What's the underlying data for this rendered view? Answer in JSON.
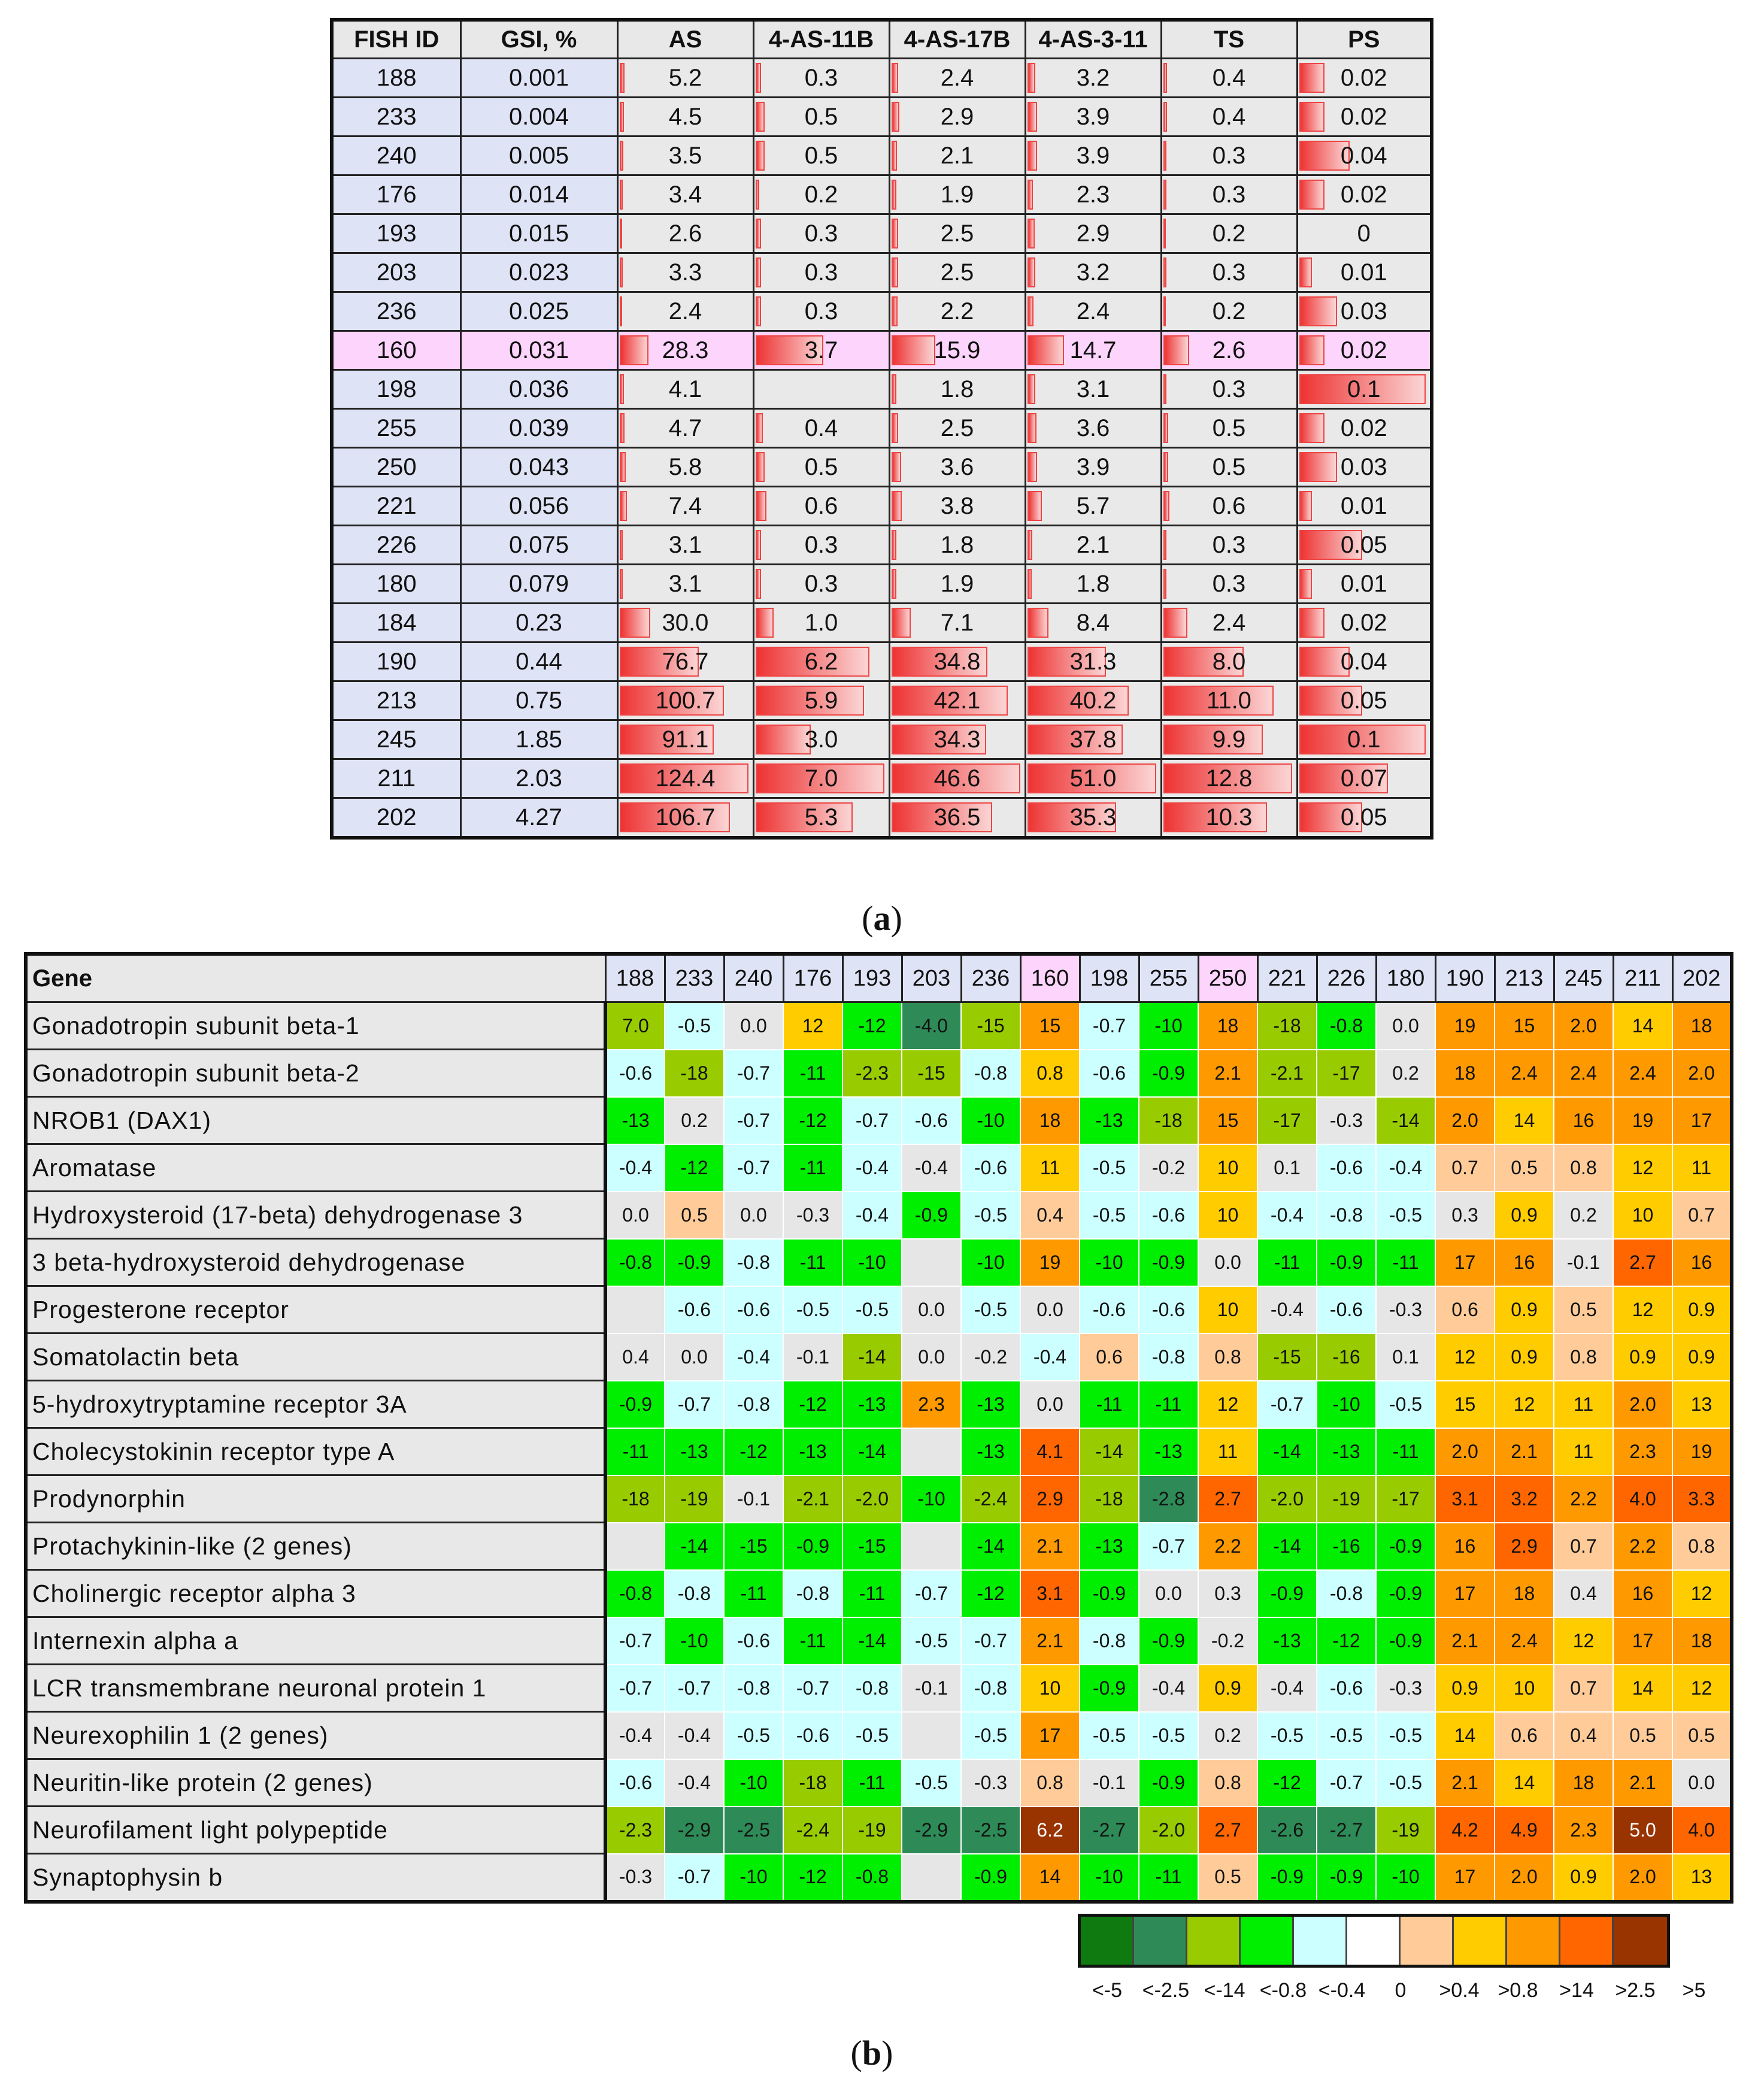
{
  "panel_a": {
    "label_letter": "a",
    "headers": [
      "FISH ID",
      "GSI, %",
      "AS",
      "4-AS-11B",
      "4-AS-17B",
      "4-AS-3-11",
      "TS",
      "PS"
    ],
    "column_max": [
      124.4,
      7.0,
      46.6,
      51.0,
      12.8,
      0.1
    ],
    "rows": [
      {
        "id": "188",
        "gsi": "0.001",
        "vals": [
          "5.2",
          "0.3",
          "2.4",
          "3.2",
          "0.4",
          "0.02"
        ]
      },
      {
        "id": "233",
        "gsi": "0.004",
        "vals": [
          "4.5",
          "0.5",
          "2.9",
          "3.9",
          "0.4",
          "0.02"
        ]
      },
      {
        "id": "240",
        "gsi": "0.005",
        "vals": [
          "3.5",
          "0.5",
          "2.1",
          "3.9",
          "0.3",
          "0.04"
        ]
      },
      {
        "id": "176",
        "gsi": "0.014",
        "vals": [
          "3.4",
          "0.2",
          "1.9",
          "2.3",
          "0.3",
          "0.02"
        ]
      },
      {
        "id": "193",
        "gsi": "0.015",
        "vals": [
          "2.6",
          "0.3",
          "2.5",
          "2.9",
          "0.2",
          "0"
        ]
      },
      {
        "id": "203",
        "gsi": "0.023",
        "vals": [
          "3.3",
          "0.3",
          "2.5",
          "3.2",
          "0.3",
          "0.01"
        ]
      },
      {
        "id": "236",
        "gsi": "0.025",
        "vals": [
          "2.4",
          "0.3",
          "2.2",
          "2.4",
          "0.2",
          "0.03"
        ]
      },
      {
        "id": "160",
        "gsi": "0.031",
        "vals": [
          "28.3",
          "3.7",
          "15.9",
          "14.7",
          "2.6",
          "0.02"
        ],
        "highlight": true
      },
      {
        "id": "198",
        "gsi": "0.036",
        "vals": [
          "4.1",
          "",
          "1.8",
          "3.1",
          "0.3",
          "0.1"
        ]
      },
      {
        "id": "255",
        "gsi": "0.039",
        "vals": [
          "4.7",
          "0.4",
          "2.5",
          "3.6",
          "0.5",
          "0.02"
        ]
      },
      {
        "id": "250",
        "gsi": "0.043",
        "vals": [
          "5.8",
          "0.5",
          "3.6",
          "3.9",
          "0.5",
          "0.03"
        ]
      },
      {
        "id": "221",
        "gsi": "0.056",
        "vals": [
          "7.4",
          "0.6",
          "3.8",
          "5.7",
          "0.6",
          "0.01"
        ]
      },
      {
        "id": "226",
        "gsi": "0.075",
        "vals": [
          "3.1",
          "0.3",
          "1.8",
          "2.1",
          "0.3",
          "0.05"
        ]
      },
      {
        "id": "180",
        "gsi": "0.079",
        "vals": [
          "3.1",
          "0.3",
          "1.9",
          "1.8",
          "0.3",
          "0.01"
        ]
      },
      {
        "id": "184",
        "gsi": "0.23",
        "vals": [
          "30.0",
          "1.0",
          "7.1",
          "8.4",
          "2.4",
          "0.02"
        ]
      },
      {
        "id": "190",
        "gsi": "0.44",
        "vals": [
          "76.7",
          "6.2",
          "34.8",
          "31.3",
          "8.0",
          "0.04"
        ]
      },
      {
        "id": "213",
        "gsi": "0.75",
        "vals": [
          "100.7",
          "5.9",
          "42.1",
          "40.2",
          "11.0",
          "0.05"
        ]
      },
      {
        "id": "245",
        "gsi": "1.85",
        "vals": [
          "91.1",
          "3.0",
          "34.3",
          "37.8",
          "9.9",
          "0.1"
        ]
      },
      {
        "id": "211",
        "gsi": "2.03",
        "vals": [
          "124.4",
          "7.0",
          "46.6",
          "51.0",
          "12.8",
          "0.07"
        ]
      },
      {
        "id": "202",
        "gsi": "4.27",
        "vals": [
          "106.7",
          "5.3",
          "36.5",
          "35.3",
          "10.3",
          "0.05"
        ]
      }
    ]
  },
  "panel_b": {
    "label_letter": "b",
    "gene_header": "Gene",
    "fish_ids": [
      "188",
      "233",
      "240",
      "176",
      "193",
      "203",
      "236",
      "160",
      "198",
      "255",
      "250",
      "221",
      "226",
      "180",
      "190",
      "213",
      "245",
      "211",
      "202"
    ],
    "highlight_ids": [
      "160",
      "250"
    ],
    "colors": {
      "dg": "#0f7a0f",
      "mg": "#2e8b57",
      "yg": "#99cc00",
      "bg": "#00ee00",
      "cy": "#ccffff",
      "wh": "#e6e6e6",
      "pe": "#ffcc99",
      "ye": "#ffcc00",
      "or": "#ff9900",
      "ro": "#ff6600",
      "br": "#993300"
    },
    "rows": [
      {
        "gene": "Gonadotropin subunit beta-1",
        "vals": [
          "7.0",
          "-0.5",
          "0.0",
          "12",
          "-12",
          "-4.0",
          "-15",
          "15",
          "-0.7",
          "-10",
          "18",
          "-18",
          "-0.8",
          "0.0",
          "19",
          "15",
          "2.0",
          "14",
          "18"
        ],
        "cls": [
          "yg",
          "cy",
          "wh",
          "ye",
          "bg",
          "mg",
          "yg",
          "or",
          "cy",
          "bg",
          "or",
          "yg",
          "bg",
          "wh",
          "or",
          "or",
          "or",
          "ye",
          "or"
        ]
      },
      {
        "gene": "Gonadotropin subunit beta-2",
        "vals": [
          "-0.6",
          "-18",
          "-0.7",
          "-11",
          "-2.3",
          "-15",
          "-0.8",
          "0.8",
          "-0.6",
          "-0.9",
          "2.1",
          "-2.1",
          "-17",
          "0.2",
          "18",
          "2.4",
          "2.4",
          "2.4",
          "2.0"
        ],
        "cls": [
          "cy",
          "yg",
          "cy",
          "bg",
          "yg",
          "yg",
          "cy",
          "ye",
          "cy",
          "bg",
          "or",
          "yg",
          "yg",
          "wh",
          "or",
          "or",
          "or",
          "or",
          "or"
        ]
      },
      {
        "gene": "NROB1 (DAX1)",
        "vals": [
          "-13",
          "0.2",
          "-0.7",
          "-12",
          "-0.7",
          "-0.6",
          "-10",
          "18",
          "-13",
          "-18",
          "15",
          "-17",
          "-0.3",
          "-14",
          "2.0",
          "14",
          "16",
          "19",
          "17"
        ],
        "cls": [
          "bg",
          "wh",
          "cy",
          "bg",
          "cy",
          "cy",
          "bg",
          "or",
          "bg",
          "yg",
          "or",
          "yg",
          "wh",
          "yg",
          "or",
          "ye",
          "or",
          "or",
          "or"
        ]
      },
      {
        "gene": "Aromatase",
        "vals": [
          "-0.4",
          "-12",
          "-0.7",
          "-11",
          "-0.4",
          "-0.4",
          "-0.6",
          "11",
          "-0.5",
          "-0.2",
          "10",
          "0.1",
          "-0.6",
          "-0.4",
          "0.7",
          "0.5",
          "0.8",
          "12",
          "11"
        ],
        "cls": [
          "cy",
          "bg",
          "cy",
          "bg",
          "cy",
          "wh",
          "cy",
          "ye",
          "cy",
          "wh",
          "ye",
          "wh",
          "cy",
          "cy",
          "pe",
          "pe",
          "pe",
          "ye",
          "ye"
        ]
      },
      {
        "gene": "Hydroxysteroid (17-beta) dehydrogenase 3",
        "vals": [
          "0.0",
          "0.5",
          "0.0",
          "-0.3",
          "-0.4",
          "-0.9",
          "-0.5",
          "0.4",
          "-0.5",
          "-0.6",
          "10",
          "-0.4",
          "-0.8",
          "-0.5",
          "0.3",
          "0.9",
          "0.2",
          "10",
          "0.7"
        ],
        "cls": [
          "wh",
          "pe",
          "wh",
          "wh",
          "cy",
          "bg",
          "cy",
          "pe",
          "cy",
          "cy",
          "ye",
          "cy",
          "cy",
          "cy",
          "wh",
          "ye",
          "wh",
          "ye",
          "pe"
        ]
      },
      {
        "gene": "3 beta-hydroxysteroid dehydrogenase",
        "vals": [
          "-0.8",
          "-0.9",
          "-0.8",
          "-11",
          "-10",
          "",
          "-10",
          "19",
          "-10",
          "-0.9",
          "0.0",
          "-11",
          "-0.9",
          "-11",
          "17",
          "16",
          "-0.1",
          "2.7",
          "16"
        ],
        "cls": [
          "bg",
          "bg",
          "cy",
          "bg",
          "bg",
          "wh",
          "bg",
          "or",
          "bg",
          "bg",
          "wh",
          "bg",
          "bg",
          "bg",
          "or",
          "or",
          "wh",
          "ro",
          "or"
        ]
      },
      {
        "gene": "Progesterone receptor",
        "vals": [
          "",
          "-0.6",
          "-0.6",
          "-0.5",
          "-0.5",
          "0.0",
          "-0.5",
          "0.0",
          "-0.6",
          "-0.6",
          "10",
          "-0.4",
          "-0.6",
          "-0.3",
          "0.6",
          "0.9",
          "0.5",
          "12",
          "0.9"
        ],
        "cls": [
          "wh",
          "cy",
          "cy",
          "cy",
          "cy",
          "wh",
          "cy",
          "wh",
          "cy",
          "cy",
          "ye",
          "wh",
          "cy",
          "wh",
          "pe",
          "ye",
          "pe",
          "ye",
          "ye"
        ]
      },
      {
        "gene": "Somatolactin beta",
        "vals": [
          "0.4",
          "0.0",
          "-0.4",
          "-0.1",
          "-14",
          "0.0",
          "-0.2",
          "-0.4",
          "0.6",
          "-0.8",
          "0.8",
          "-15",
          "-16",
          "0.1",
          "12",
          "0.9",
          "0.8",
          "0.9",
          "0.9"
        ],
        "cls": [
          "wh",
          "wh",
          "cy",
          "wh",
          "yg",
          "wh",
          "wh",
          "cy",
          "pe",
          "cy",
          "pe",
          "yg",
          "yg",
          "wh",
          "ye",
          "ye",
          "pe",
          "ye",
          "ye"
        ]
      },
      {
        "gene": "5-hydroxytryptamine receptor 3A",
        "vals": [
          "-0.9",
          "-0.7",
          "-0.8",
          "-12",
          "-13",
          "2.3",
          "-13",
          "0.0",
          "-11",
          "-11",
          "12",
          "-0.7",
          "-10",
          "-0.5",
          "15",
          "12",
          "11",
          "2.0",
          "13"
        ],
        "cls": [
          "bg",
          "cy",
          "cy",
          "bg",
          "bg",
          "or",
          "bg",
          "wh",
          "bg",
          "bg",
          "ye",
          "cy",
          "bg",
          "cy",
          "ye",
          "ye",
          "ye",
          "or",
          "ye"
        ]
      },
      {
        "gene": "Cholecystokinin receptor type A",
        "vals": [
          "-11",
          "-13",
          "-12",
          "-13",
          "-14",
          "",
          "-13",
          "4.1",
          "-14",
          "-13",
          "11",
          "-14",
          "-13",
          "-11",
          "2.0",
          "2.1",
          "11",
          "2.3",
          "19"
        ],
        "cls": [
          "bg",
          "bg",
          "bg",
          "bg",
          "bg",
          "wh",
          "bg",
          "ro",
          "yg",
          "bg",
          "ye",
          "bg",
          "bg",
          "bg",
          "or",
          "or",
          "ye",
          "or",
          "or"
        ]
      },
      {
        "gene": "Prodynorphin",
        "vals": [
          "-18",
          "-19",
          "-0.1",
          "-2.1",
          "-2.0",
          "-10",
          "-2.4",
          "2.9",
          "-18",
          "-2.8",
          "2.7",
          "-2.0",
          "-19",
          "-17",
          "3.1",
          "3.2",
          "2.2",
          "4.0",
          "3.3"
        ],
        "cls": [
          "yg",
          "yg",
          "wh",
          "yg",
          "yg",
          "bg",
          "yg",
          "ro",
          "yg",
          "mg",
          "ro",
          "yg",
          "yg",
          "yg",
          "ro",
          "ro",
          "or",
          "ro",
          "ro"
        ]
      },
      {
        "gene": "Protachykinin-like (2 genes)",
        "vals": [
          "",
          "-14",
          "-15",
          "-0.9",
          "-15",
          "",
          "-14",
          "2.1",
          "-13",
          "-0.7",
          "2.2",
          "-14",
          "-16",
          "-0.9",
          "16",
          "2.9",
          "0.7",
          "2.2",
          "0.8"
        ],
        "cls": [
          "wh",
          "bg",
          "bg",
          "bg",
          "bg",
          "wh",
          "bg",
          "or",
          "bg",
          "cy",
          "or",
          "bg",
          "bg",
          "bg",
          "or",
          "ro",
          "pe",
          "or",
          "pe"
        ]
      },
      {
        "gene": "Cholinergic receptor alpha 3",
        "vals": [
          "-0.8",
          "-0.8",
          "-11",
          "-0.8",
          "-11",
          "-0.7",
          "-12",
          "3.1",
          "-0.9",
          "0.0",
          "0.3",
          "-0.9",
          "-0.8",
          "-0.9",
          "17",
          "18",
          "0.4",
          "16",
          "12"
        ],
        "cls": [
          "bg",
          "cy",
          "bg",
          "cy",
          "bg",
          "cy",
          "bg",
          "ro",
          "bg",
          "wh",
          "wh",
          "bg",
          "cy",
          "bg",
          "or",
          "or",
          "wh",
          "or",
          "ye"
        ]
      },
      {
        "gene": "Internexin  alpha a",
        "vals": [
          "-0.7",
          "-10",
          "-0.6",
          "-11",
          "-14",
          "-0.5",
          "-0.7",
          "2.1",
          "-0.8",
          "-0.9",
          "-0.2",
          "-13",
          "-12",
          "-0.9",
          "2.1",
          "2.4",
          "12",
          "17",
          "18"
        ],
        "cls": [
          "cy",
          "bg",
          "cy",
          "bg",
          "bg",
          "cy",
          "cy",
          "or",
          "cy",
          "bg",
          "wh",
          "bg",
          "bg",
          "bg",
          "or",
          "or",
          "ye",
          "or",
          "or"
        ]
      },
      {
        "gene": "LCR transmembrane neuronal protein 1",
        "vals": [
          "-0.7",
          "-0.7",
          "-0.8",
          "-0.7",
          "-0.8",
          "-0.1",
          "-0.8",
          "10",
          "-0.9",
          "-0.4",
          "0.9",
          "-0.4",
          "-0.6",
          "-0.3",
          "0.9",
          "10",
          "0.7",
          "14",
          "12"
        ],
        "cls": [
          "cy",
          "cy",
          "cy",
          "cy",
          "cy",
          "wh",
          "cy",
          "ye",
          "bg",
          "wh",
          "ye",
          "wh",
          "cy",
          "wh",
          "ye",
          "ye",
          "pe",
          "ye",
          "ye"
        ]
      },
      {
        "gene": "Neurexophilin 1 (2 genes)",
        "vals": [
          "-0.4",
          "-0.4",
          "-0.5",
          "-0.6",
          "-0.5",
          "",
          "-0.5",
          "17",
          "-0.5",
          "-0.5",
          "0.2",
          "-0.5",
          "-0.5",
          "-0.5",
          "14",
          "0.6",
          "0.4",
          "0.5",
          "0.5"
        ],
        "cls": [
          "wh",
          "wh",
          "cy",
          "cy",
          "cy",
          "wh",
          "cy",
          "or",
          "cy",
          "cy",
          "wh",
          "cy",
          "cy",
          "cy",
          "ye",
          "pe",
          "pe",
          "pe",
          "pe"
        ]
      },
      {
        "gene": "Neuritin-like protein (2 genes)",
        "vals": [
          "-0.6",
          "-0.4",
          "-10",
          "-18",
          "-11",
          "-0.5",
          "-0.3",
          "0.8",
          "-0.1",
          "-0.9",
          "0.8",
          "-12",
          "-0.7",
          "-0.5",
          "2.1",
          "14",
          "18",
          "2.1",
          "0.0"
        ],
        "cls": [
          "cy",
          "wh",
          "bg",
          "yg",
          "bg",
          "cy",
          "wh",
          "pe",
          "wh",
          "bg",
          "pe",
          "bg",
          "cy",
          "cy",
          "or",
          "ye",
          "or",
          "or",
          "wh"
        ]
      },
      {
        "gene": "Neurofilament light polypeptide",
        "vals": [
          "-2.3",
          "-2.9",
          "-2.5",
          "-2.4",
          "-19",
          "-2.9",
          "-2.5",
          "6.2",
          "-2.7",
          "-2.0",
          "2.7",
          "-2.6",
          "-2.7",
          "-19",
          "4.2",
          "4.9",
          "2.3",
          "5.0",
          "4.0"
        ],
        "cls": [
          "yg",
          "mg",
          "mg",
          "yg",
          "yg",
          "mg",
          "mg",
          "br",
          "mg",
          "yg",
          "ro",
          "mg",
          "mg",
          "yg",
          "ro",
          "ro",
          "or",
          "br",
          "ro"
        ]
      },
      {
        "gene": "Synaptophysin b",
        "vals": [
          "-0.3",
          "-0.7",
          "-10",
          "-12",
          "-0.8",
          "",
          "-0.9",
          "14",
          "-10",
          "-11",
          "0.5",
          "-0.9",
          "-0.9",
          "-10",
          "17",
          "2.0",
          "0.9",
          "2.0",
          "13"
        ],
        "cls": [
          "wh",
          "cy",
          "bg",
          "bg",
          "bg",
          "wh",
          "bg",
          "or",
          "bg",
          "bg",
          "pe",
          "bg",
          "bg",
          "bg",
          "or",
          "or",
          "ye",
          "or",
          "ye"
        ]
      }
    ],
    "legend": {
      "labels": [
        "<-5",
        "<-2.5",
        "<-14",
        "<-0.8",
        "<-0.4",
        "0",
        ">0.4",
        ">0.8",
        ">14",
        ">2.5",
        ">5"
      ],
      "colors": [
        "#0f7a0f",
        "#2e8b57",
        "#99cc00",
        "#00ee00",
        "#ccffff",
        "#ffffff",
        "#ffcc99",
        "#ffcc00",
        "#ff9900",
        "#ff6600",
        "#993300"
      ]
    }
  }
}
